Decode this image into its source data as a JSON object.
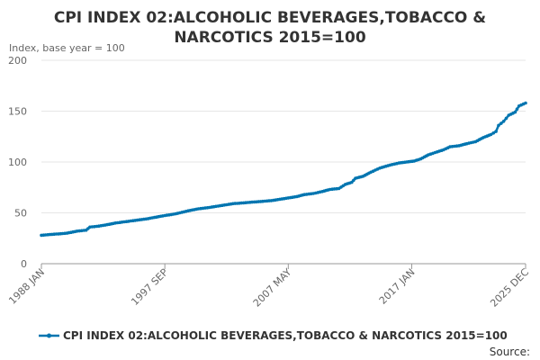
{
  "chart_data": {
    "type": "line",
    "title_lines": [
      "CPI INDEX 02:ALCOHOLIC BEVERAGES,TOBACCO &",
      "NARCOTICS 2015=100"
    ],
    "ylabel": "Index, base year = 100",
    "ylim": [
      0,
      200
    ],
    "yticks": [
      0,
      50,
      100,
      150,
      200
    ],
    "ytick_labels": [
      "0",
      "50",
      "100",
      "150",
      "200"
    ],
    "xlim": [
      1988.0,
      2025.917
    ],
    "xticks": [
      {
        "x": 1988.0,
        "label": "1988 JAN"
      },
      {
        "x": 1997.667,
        "label": "1997 SEP"
      },
      {
        "x": 2007.333,
        "label": "2007 MAY"
      },
      {
        "x": 2017.0,
        "label": "2017 JAN"
      },
      {
        "x": 2025.917,
        "label": "2025 DEC"
      }
    ],
    "grid": true,
    "legend": "bottom",
    "series": [
      {
        "name": "CPI INDEX 02:ALCOHOLIC BEVERAGES,TOBACCO & NARCOTICS 2015=100",
        "color": "#0075b0",
        "points": [
          [
            1988.0,
            28
          ],
          [
            1989.0,
            29
          ],
          [
            1990.0,
            30
          ],
          [
            1990.8,
            32
          ],
          [
            1991.5,
            33
          ],
          [
            1991.8,
            36
          ],
          [
            1992.5,
            37
          ],
          [
            1993.0,
            38
          ],
          [
            1993.8,
            40
          ],
          [
            1995.0,
            42
          ],
          [
            1996.2,
            44
          ],
          [
            1997.5,
            47
          ],
          [
            1998.5,
            49
          ],
          [
            1999.5,
            52
          ],
          [
            2000.3,
            54
          ],
          [
            2001.0,
            55
          ],
          [
            2002.0,
            57
          ],
          [
            2003.0,
            59
          ],
          [
            2004.0,
            60
          ],
          [
            2005.0,
            61
          ],
          [
            2006.0,
            62
          ],
          [
            2007.0,
            64
          ],
          [
            2008.0,
            66
          ],
          [
            2008.6,
            68
          ],
          [
            2009.3,
            69
          ],
          [
            2010.0,
            71
          ],
          [
            2010.6,
            73
          ],
          [
            2011.3,
            74
          ],
          [
            2011.8,
            78
          ],
          [
            2012.3,
            80
          ],
          [
            2012.6,
            84
          ],
          [
            2013.2,
            86
          ],
          [
            2013.8,
            90
          ],
          [
            2014.5,
            94
          ],
          [
            2015.3,
            97
          ],
          [
            2016.0,
            99
          ],
          [
            2016.6,
            100
          ],
          [
            2017.2,
            101
          ],
          [
            2017.7,
            103
          ],
          [
            2018.3,
            107
          ],
          [
            2019.0,
            110
          ],
          [
            2019.5,
            112
          ],
          [
            2020.0,
            115
          ],
          [
            2020.7,
            116
          ],
          [
            2021.3,
            118
          ],
          [
            2022.0,
            120
          ],
          [
            2022.6,
            124
          ],
          [
            2023.2,
            127
          ],
          [
            2023.6,
            130
          ],
          [
            2023.8,
            136
          ],
          [
            2024.2,
            140
          ],
          [
            2024.6,
            146
          ],
          [
            2025.1,
            149
          ],
          [
            2025.4,
            155
          ],
          [
            2025.917,
            158
          ]
        ]
      }
    ]
  },
  "source": {
    "label": "Source:"
  }
}
